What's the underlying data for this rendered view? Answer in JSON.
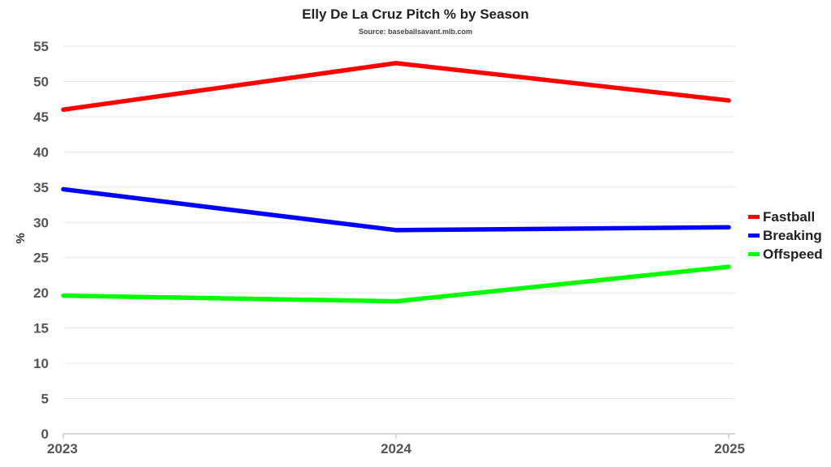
{
  "chart_data": {
    "type": "line",
    "title": "Elly De La Cruz Pitch % by Season",
    "subtitle": "Source: baseballsavant.mlb.com",
    "xlabel": "",
    "ylabel": "%",
    "categories": [
      "2023",
      "2024",
      "2025"
    ],
    "ylim": [
      0,
      55
    ],
    "yticks": [
      "0",
      "5",
      "10",
      "15",
      "20",
      "25",
      "30",
      "35",
      "40",
      "45",
      "50",
      "55"
    ],
    "grid": true,
    "legend_position": "right",
    "series": [
      {
        "name": "Fastball",
        "color": "#ff0000",
        "values": [
          46.0,
          52.6,
          47.3
        ]
      },
      {
        "name": "Breaking",
        "color": "#0000ff",
        "values": [
          34.7,
          28.9,
          29.3
        ]
      },
      {
        "name": "Offspeed",
        "color": "#00ff00",
        "values": [
          19.6,
          18.8,
          23.7
        ]
      }
    ]
  }
}
